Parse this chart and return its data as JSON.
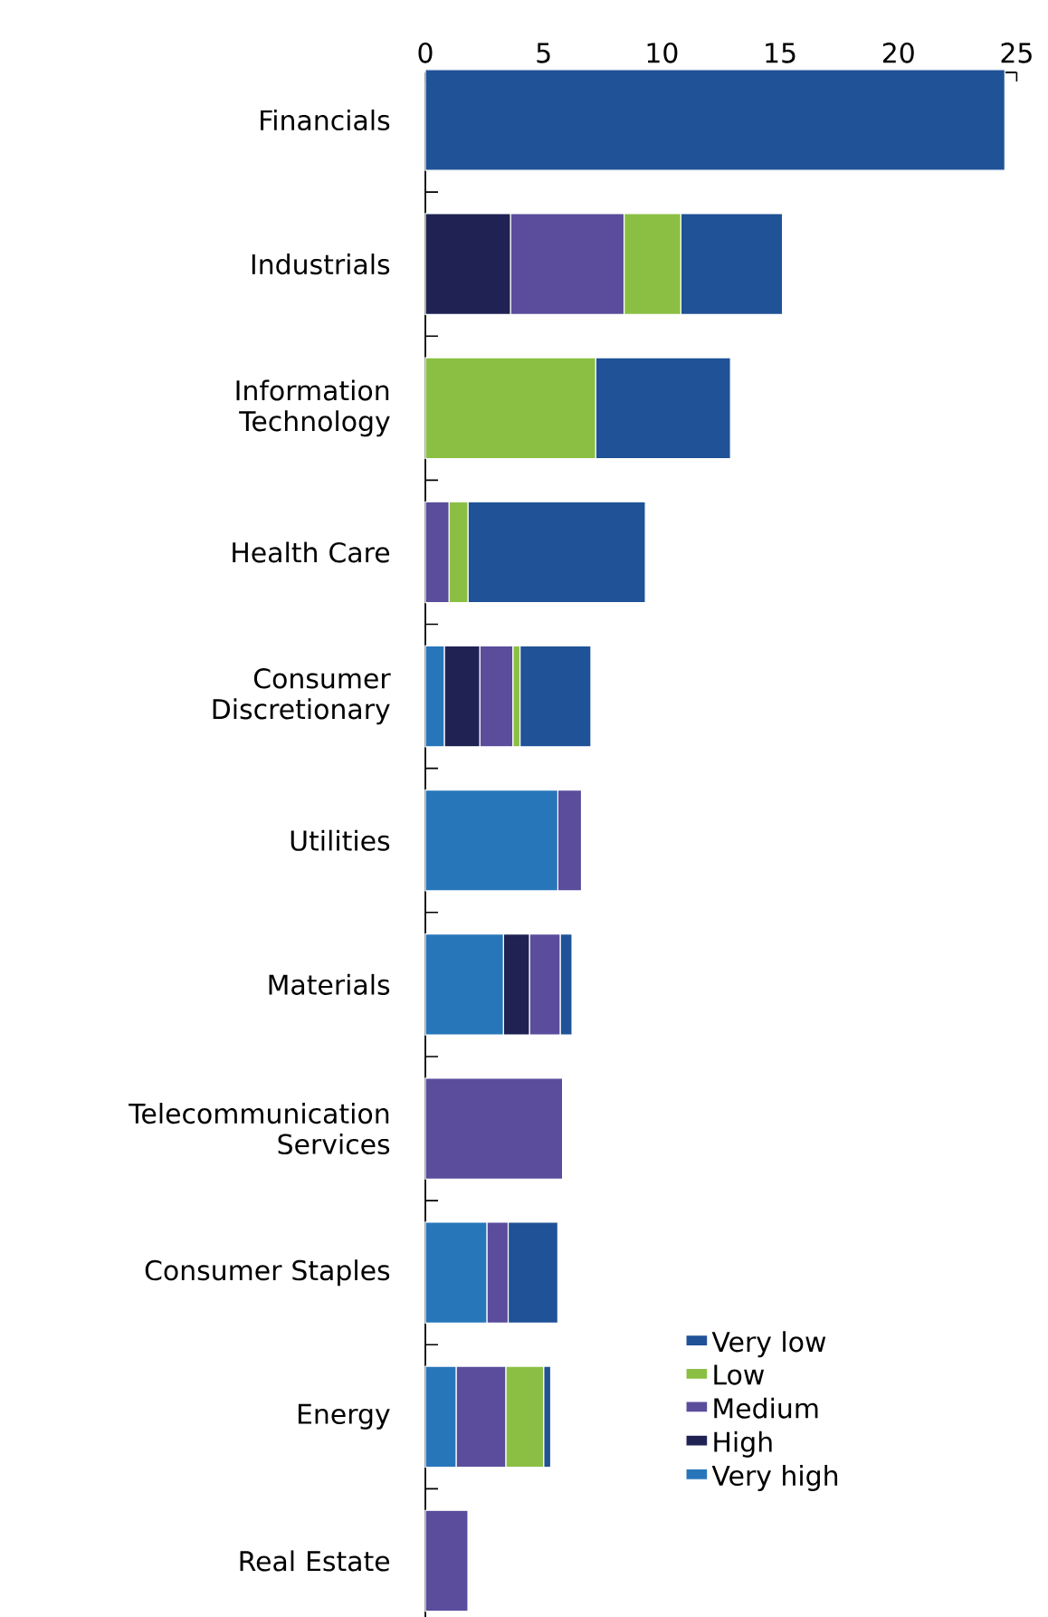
{
  "chart_data": {
    "type": "bar",
    "orientation": "horizontal",
    "stacked": true,
    "categories": [
      "Financials",
      "Industrials",
      "Information Technology",
      "Health Care",
      "Consumer Discretionary",
      "Utilities",
      "Materials",
      "Telecommunication Services",
      "Consumer Staples",
      "Energy",
      "Real Estate"
    ],
    "series": [
      {
        "name": "Very high",
        "color": "#2776ba",
        "values": [
          null,
          null,
          null,
          null,
          0.8,
          5.6,
          3.3,
          null,
          2.6,
          1.3,
          null
        ]
      },
      {
        "name": "High",
        "color": "#1f2252",
        "values": [
          null,
          3.6,
          null,
          null,
          1.5,
          null,
          1.1,
          null,
          null,
          null,
          null
        ]
      },
      {
        "name": "Medium",
        "color": "#5b4c9c",
        "values": [
          null,
          4.8,
          null,
          1.0,
          1.4,
          1.0,
          1.3,
          5.8,
          0.9,
          2.1,
          1.8
        ]
      },
      {
        "name": "Low",
        "color": "#8bbf44",
        "values": [
          null,
          2.4,
          7.2,
          0.8,
          0.3,
          null,
          null,
          null,
          null,
          1.6,
          null
        ]
      },
      {
        "name": "Very low",
        "color": "#1f5296",
        "values": [
          24.5,
          4.3,
          5.7,
          7.5,
          3.0,
          null,
          0.5,
          null,
          2.1,
          0.3,
          null
        ]
      }
    ],
    "xlim": [
      0,
      25
    ],
    "xticks": [
      0,
      5,
      10,
      15,
      20,
      25
    ],
    "legend": "bottom right",
    "grid": false
  }
}
